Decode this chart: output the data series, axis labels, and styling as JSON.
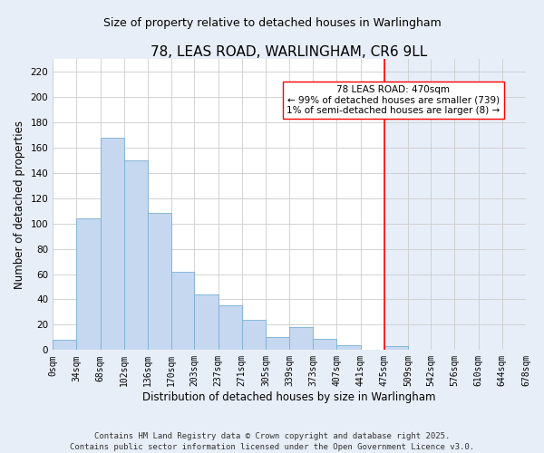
{
  "title": "78, LEAS ROAD, WARLINGHAM, CR6 9LL",
  "subtitle": "Size of property relative to detached houses in Warlingham",
  "xlabel": "Distribution of detached houses by size in Warlingham",
  "ylabel": "Number of detached properties",
  "bin_edges": [
    0,
    34,
    68,
    102,
    136,
    170,
    203,
    237,
    271,
    305,
    339,
    373,
    407,
    441,
    475,
    509,
    542,
    576,
    610,
    644,
    678
  ],
  "bar_heights": [
    8,
    104,
    168,
    150,
    108,
    62,
    44,
    35,
    24,
    10,
    18,
    9,
    4,
    0,
    3,
    0,
    0,
    0,
    0,
    0
  ],
  "bar_color": "#c5d8f0",
  "bar_edgecolor": "#7aafd4",
  "vline_x": 475,
  "vline_color": "red",
  "annotation_title": "78 LEAS ROAD: 470sqm",
  "annotation_line1": "← 99% of detached houses are smaller (739)",
  "annotation_line2": "1% of semi-detached houses are larger (8) →",
  "ytick_values": [
    0,
    20,
    40,
    60,
    80,
    100,
    120,
    140,
    160,
    180,
    200,
    220
  ],
  "ylim": [
    0,
    230
  ],
  "xlim": [
    0,
    678
  ],
  "tick_labels": [
    "0sqm",
    "34sqm",
    "68sqm",
    "102sqm",
    "136sqm",
    "170sqm",
    "203sqm",
    "237sqm",
    "271sqm",
    "305sqm",
    "339sqm",
    "373sqm",
    "407sqm",
    "441sqm",
    "475sqm",
    "509sqm",
    "542sqm",
    "576sqm",
    "610sqm",
    "644sqm",
    "678sqm"
  ],
  "footer_line1": "Contains HM Land Registry data © Crown copyright and database right 2025.",
  "footer_line2": "Contains public sector information licensed under the Open Government Licence v3.0.",
  "bg_left_color": "#ffffff",
  "bg_right_color": "#e8eef8",
  "grid_color": "#cccccc",
  "fig_background": "#e8eef8",
  "title_fontsize": 11,
  "subtitle_fontsize": 9,
  "label_fontsize": 8.5,
  "tick_fontsize": 7,
  "footer_fontsize": 6.5,
  "annot_fontsize": 7.5
}
